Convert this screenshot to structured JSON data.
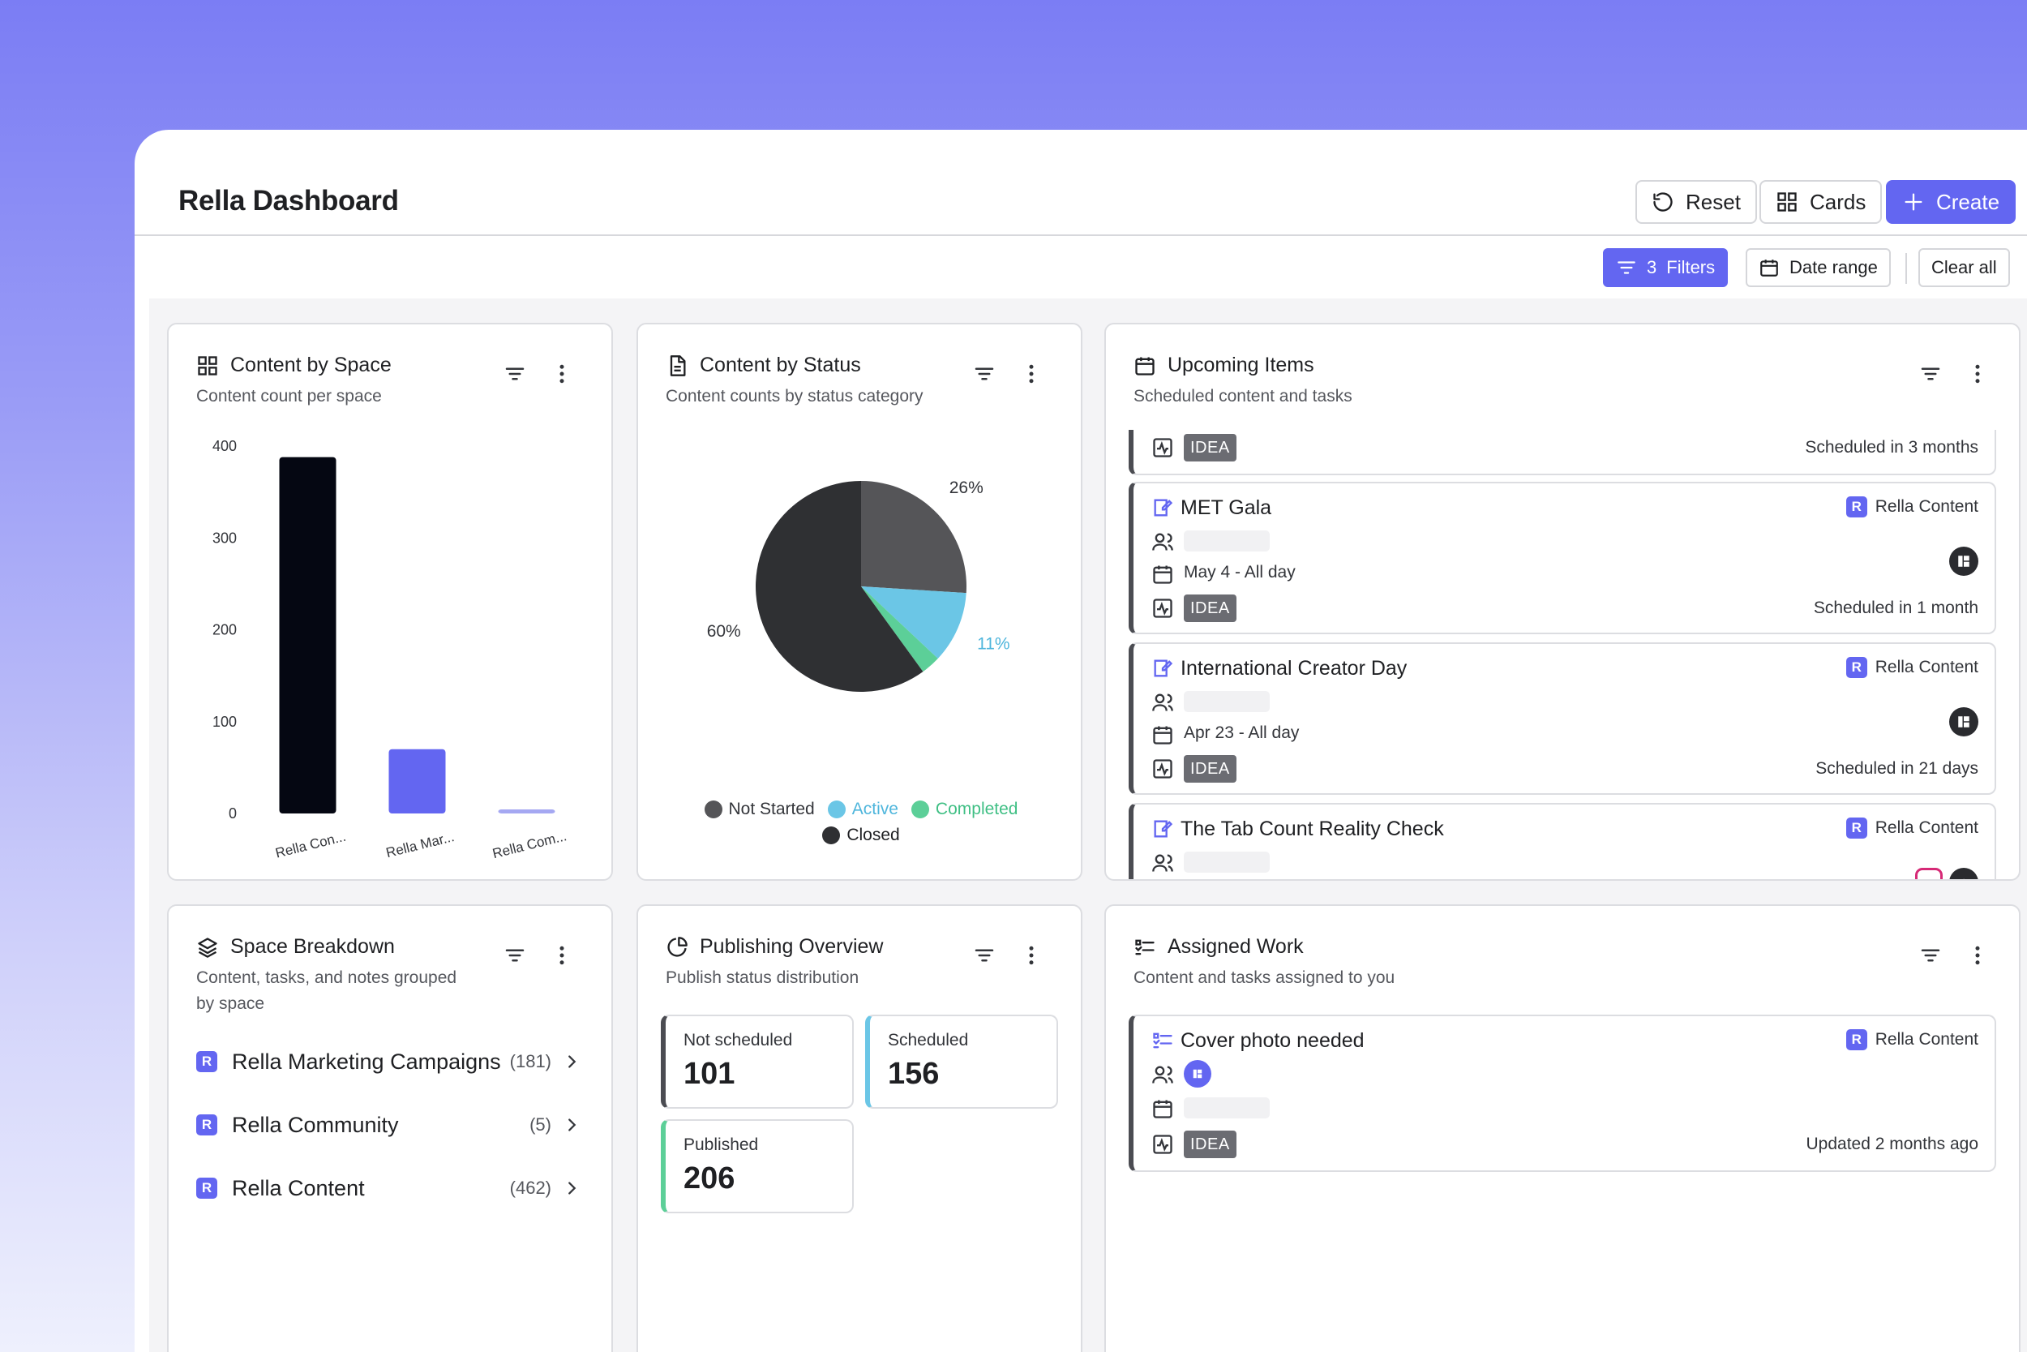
{
  "app": {
    "title": "Rella Dashboard"
  },
  "header": {
    "reset_label": "Reset",
    "cards_label": "Cards",
    "create_label": "Create"
  },
  "filters": {
    "count": "3",
    "filters_label": "Filters",
    "date_range_label": "Date range",
    "clear_all_label": "Clear all"
  },
  "cards": {
    "content_by_space": {
      "title": "Content by Space",
      "subtitle": "Content count per space"
    },
    "content_by_status": {
      "title": "Content by Status",
      "subtitle": "Content counts by status category"
    },
    "upcoming": {
      "title": "Upcoming Items",
      "subtitle": "Scheduled content and tasks",
      "items": [
        {
          "title": "",
          "space": "",
          "date": "",
          "tag": "IDEA",
          "meta": "Scheduled in 3 months"
        },
        {
          "title": "MET Gala",
          "space": "Rella Content",
          "date": "May 4 - All day",
          "tag": "IDEA",
          "meta": "Scheduled in 1 month"
        },
        {
          "title": "International Creator Day",
          "space": "Rella Content",
          "date": "Apr 23 - All day",
          "tag": "IDEA",
          "meta": "Scheduled in 21 days"
        },
        {
          "title": "The Tab Count Reality Check",
          "space": "Rella Content",
          "date": "",
          "tag": "",
          "meta": ""
        }
      ]
    },
    "space_breakdown": {
      "title": "Space Breakdown",
      "subtitle_line1": "Content, tasks, and notes grouped",
      "subtitle_line2": "by space",
      "rows": [
        {
          "name": "Rella Marketing Campaigns",
          "count": "(181)"
        },
        {
          "name": "Rella Community",
          "count": "(5)"
        },
        {
          "name": "Rella Content",
          "count": "(462)"
        }
      ]
    },
    "publishing": {
      "title": "Publishing Overview",
      "subtitle": "Publish status distribution",
      "stats": [
        {
          "label": "Not scheduled",
          "value": "101"
        },
        {
          "label": "Scheduled",
          "value": "156"
        },
        {
          "label": "Published",
          "value": "206"
        }
      ]
    },
    "assigned": {
      "title": "Assigned Work",
      "subtitle": "Content and tasks assigned to you",
      "item": {
        "title": "Cover photo needed",
        "space": "Rella Content",
        "tag": "IDEA",
        "meta": "Updated 2 months ago"
      }
    }
  },
  "colors": {
    "accent": "#6366f1",
    "not_started": "#555558",
    "active": "#6bc6e6",
    "completed": "#5ccf98",
    "closed": "#2f3033",
    "published_border": "#5ccf98",
    "scheduled_border": "#6bc6e6"
  },
  "chart_data": [
    {
      "type": "bar",
      "categories": [
        "Rella Con...",
        "Rella Mar...",
        "Rella Com..."
      ],
      "values": [
        388,
        70,
        4
      ],
      "colors": [
        "#050712",
        "#6366f1",
        "#a5a8f2"
      ],
      "ylim": [
        0,
        400
      ],
      "yticks": [
        "0",
        "100",
        "200",
        "300",
        "400"
      ],
      "grid": false
    },
    {
      "type": "pie",
      "labels": [
        "Not Started",
        "Active",
        "Completed",
        "Closed"
      ],
      "values": [
        26,
        11,
        3,
        60
      ],
      "data_labels": [
        "26%",
        "11%",
        "",
        "60%"
      ],
      "colors": [
        "#555558",
        "#6bc6e6",
        "#5ccf98",
        "#2f3033"
      ],
      "legend": "bottom"
    }
  ]
}
